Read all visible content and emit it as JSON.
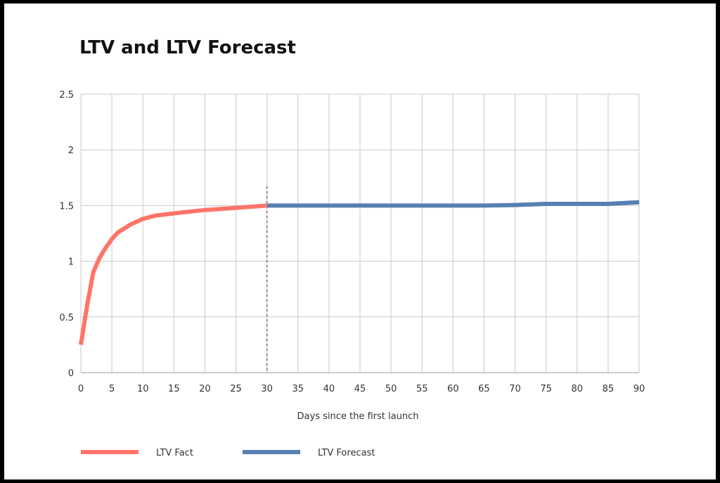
{
  "chart_data": {
    "type": "line",
    "title": "LTV and LTV Forecast",
    "xlabel": "Days since the first launch",
    "ylabel": "",
    "xlim": [
      0,
      90
    ],
    "ylim": [
      0,
      2.5
    ],
    "xticks": [
      "0",
      "5",
      "10",
      "15",
      "20",
      "25",
      "30",
      "35",
      "40",
      "45",
      "50",
      "55",
      "60",
      "65",
      "70",
      "75",
      "80",
      "85",
      "90"
    ],
    "yticks": [
      "0",
      "0.5",
      "1",
      "1.5",
      "2",
      "2.5"
    ],
    "grid": true,
    "legend_placement": "bottom-left",
    "divider_x": 30,
    "series": [
      {
        "name": "LTV Fact",
        "color": "#ff7469",
        "x": [
          0,
          1,
          2,
          3,
          4,
          5,
          6,
          8,
          10,
          12,
          15,
          20,
          25,
          30
        ],
        "y": [
          0.25,
          0.6,
          0.9,
          1.03,
          1.12,
          1.2,
          1.26,
          1.33,
          1.38,
          1.41,
          1.43,
          1.46,
          1.48,
          1.5
        ]
      },
      {
        "name": "LTV Forecast",
        "color": "#5580b0",
        "x": [
          30,
          35,
          40,
          45,
          50,
          55,
          60,
          65,
          70,
          75,
          80,
          85,
          90
        ],
        "y": [
          1.5,
          1.5,
          1.5,
          1.5,
          1.5,
          1.5,
          1.5,
          1.5,
          1.505,
          1.515,
          1.515,
          1.515,
          1.53
        ]
      }
    ]
  }
}
